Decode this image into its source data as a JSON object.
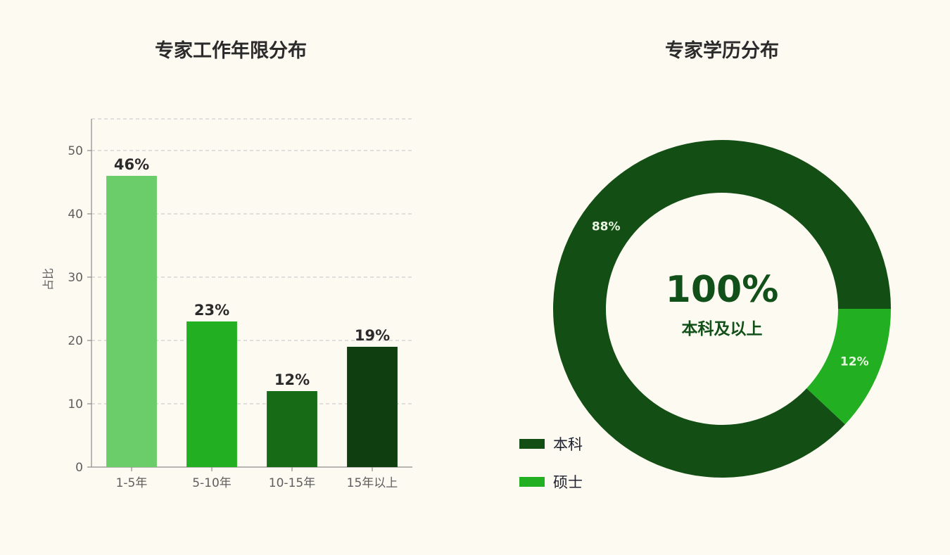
{
  "chart_data": [
    {
      "type": "bar",
      "title": "专家工作年限分布",
      "xlabel": "",
      "ylabel": "占比",
      "categories": [
        "1-5年",
        "5-10年",
        "10-15年",
        "15年以上"
      ],
      "values": [
        46,
        23,
        12,
        19
      ],
      "value_labels": [
        "46%",
        "23%",
        "12%",
        "19%"
      ],
      "colors": [
        "#6acd6a",
        "#22b022",
        "#176b17",
        "#0f3f10"
      ],
      "ylim": [
        0,
        55
      ],
      "yticks": [
        0,
        10,
        20,
        30,
        40,
        50
      ],
      "grid": true,
      "grid_style": "dashed"
    },
    {
      "type": "pie",
      "variant": "donut",
      "title": "专家学历分布",
      "categories": [
        "本科",
        "硕士"
      ],
      "values": [
        88,
        12
      ],
      "value_labels": [
        "88%",
        "12%"
      ],
      "colors": [
        "#134f15",
        "#22b022"
      ],
      "center_value": "100%",
      "center_caption": "本科及以上",
      "legend": {
        "placement": "bottom-left",
        "items": [
          "本科",
          "硕士"
        ]
      }
    }
  ]
}
